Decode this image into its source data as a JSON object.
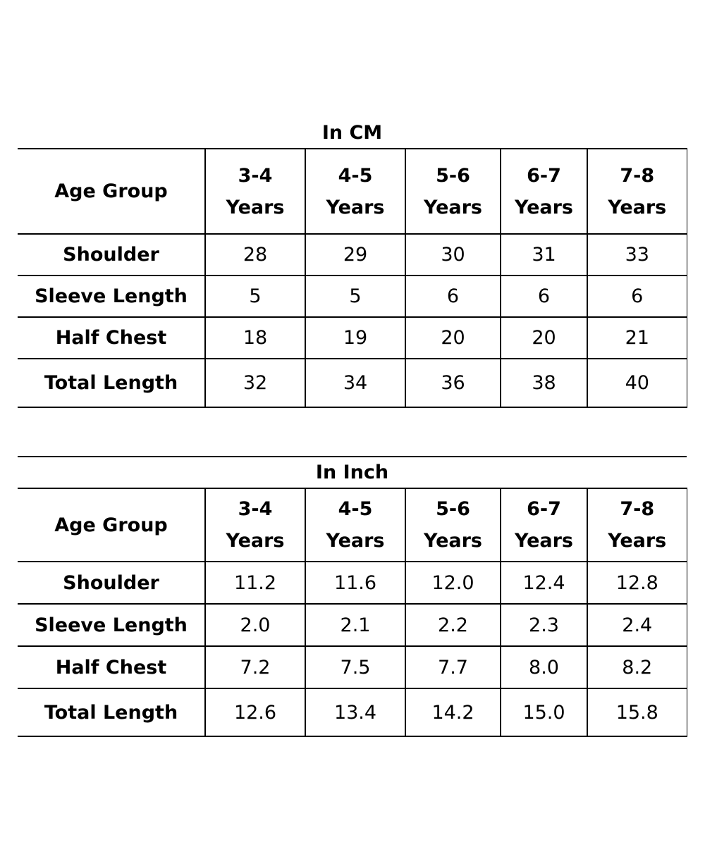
{
  "tables": [
    {
      "title": "In CM",
      "header": {
        "label": "Age Group",
        "columns": [
          {
            "top": "3-4",
            "bottom": "Years"
          },
          {
            "top": "4-5",
            "bottom": "Years"
          },
          {
            "top": "5-6",
            "bottom": "Years"
          },
          {
            "top": "6-7",
            "bottom": "Years"
          },
          {
            "top": "7-8",
            "bottom": "Years"
          }
        ]
      },
      "rows": [
        {
          "label": "Shoulder",
          "values": [
            "28",
            "29",
            "30",
            "31",
            "33"
          ]
        },
        {
          "label": "Sleeve Length",
          "values": [
            "5",
            "5",
            "6",
            "6",
            "6"
          ]
        },
        {
          "label": "Half Chest",
          "values": [
            "18",
            "19",
            "20",
            "20",
            "21"
          ]
        },
        {
          "label": "Total Length",
          "values": [
            "32",
            "34",
            "36",
            "38",
            "40"
          ]
        }
      ]
    },
    {
      "title": "In Inch",
      "header": {
        "label": "Age Group",
        "columns": [
          {
            "top": "3-4",
            "bottom": "Years"
          },
          {
            "top": "4-5",
            "bottom": "Years"
          },
          {
            "top": "5-6",
            "bottom": "Years"
          },
          {
            "top": "6-7",
            "bottom": "Years"
          },
          {
            "top": "7-8",
            "bottom": "Years"
          }
        ]
      },
      "rows": [
        {
          "label": "Shoulder",
          "values": [
            "11.2",
            "11.6",
            "12.0",
            "12.4",
            "12.8"
          ]
        },
        {
          "label": "Sleeve Length",
          "values": [
            "2.0",
            "2.1",
            "2.2",
            "2.3",
            "2.4"
          ]
        },
        {
          "label": "Half Chest",
          "values": [
            "7.2",
            "7.5",
            "7.7",
            "8.0",
            "8.2"
          ]
        },
        {
          "label": "Total Length",
          "values": [
            "12.6",
            "13.4",
            "14.2",
            "15.0",
            "15.8"
          ]
        }
      ]
    }
  ]
}
